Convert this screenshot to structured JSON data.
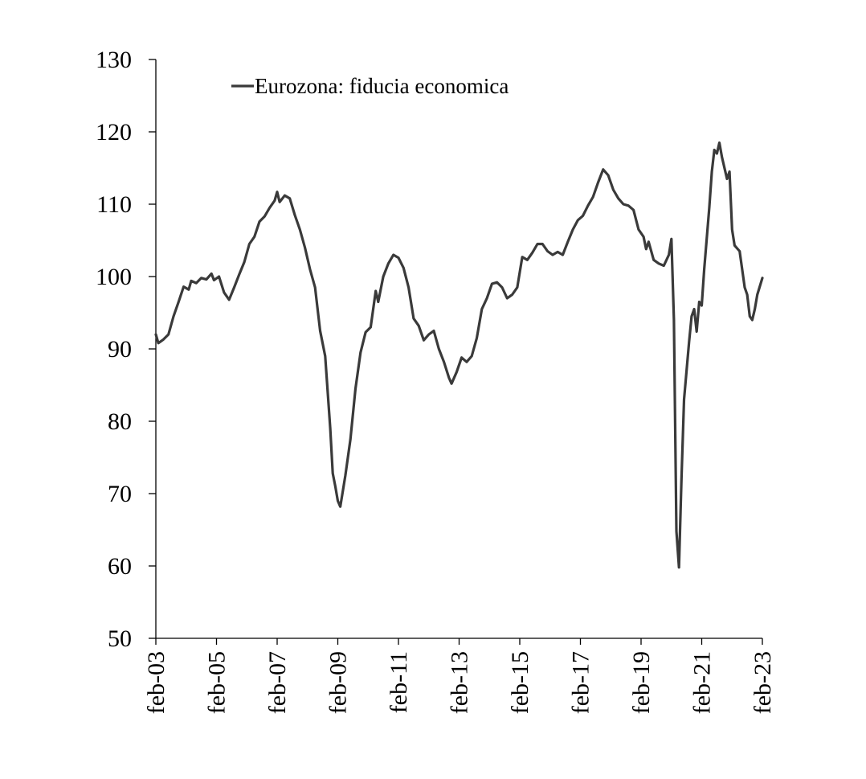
{
  "chart_data": {
    "type": "line",
    "title": "",
    "xlabel": "",
    "ylabel": "",
    "ylim": [
      50,
      130
    ],
    "yticks": [
      50,
      60,
      70,
      80,
      90,
      100,
      110,
      120,
      130
    ],
    "xlim": [
      "2003-02",
      "2023-02"
    ],
    "xticks": [
      {
        "date": "2003-02",
        "label": "feb-03"
      },
      {
        "date": "2005-02",
        "label": "feb-05"
      },
      {
        "date": "2007-02",
        "label": "feb-07"
      },
      {
        "date": "2009-02",
        "label": "feb-09"
      },
      {
        "date": "2011-02",
        "label": "feb-11"
      },
      {
        "date": "2013-02",
        "label": "feb-13"
      },
      {
        "date": "2015-02",
        "label": "feb-15"
      },
      {
        "date": "2017-02",
        "label": "feb-17"
      },
      {
        "date": "2019-02",
        "label": "feb-19"
      },
      {
        "date": "2021-02",
        "label": "feb-21"
      },
      {
        "date": "2023-02",
        "label": "feb-23"
      }
    ],
    "grid": false,
    "legend": {
      "position": "top-left"
    },
    "series": [
      {
        "name": "Eurozona: fiducia economica",
        "color": "#3a3a3a",
        "points": [
          [
            "2003-02",
            92.0
          ],
          [
            "2003-03",
            90.8
          ],
          [
            "2003-05",
            91.3
          ],
          [
            "2003-07",
            92.0
          ],
          [
            "2003-09",
            94.5
          ],
          [
            "2003-11",
            96.5
          ],
          [
            "2004-01",
            98.6
          ],
          [
            "2004-03",
            98.2
          ],
          [
            "2004-04",
            99.4
          ],
          [
            "2004-06",
            99.1
          ],
          [
            "2004-08",
            99.8
          ],
          [
            "2004-10",
            99.6
          ],
          [
            "2004-12",
            100.4
          ],
          [
            "2005-01",
            99.5
          ],
          [
            "2005-03",
            100.0
          ],
          [
            "2005-05",
            97.8
          ],
          [
            "2005-07",
            96.8
          ],
          [
            "2005-09",
            98.5
          ],
          [
            "2005-11",
            100.3
          ],
          [
            "2006-01",
            102.0
          ],
          [
            "2006-03",
            104.5
          ],
          [
            "2006-05",
            105.5
          ],
          [
            "2006-07",
            107.6
          ],
          [
            "2006-09",
            108.3
          ],
          [
            "2006-11",
            109.5
          ],
          [
            "2007-01",
            110.5
          ],
          [
            "2007-02",
            111.7
          ],
          [
            "2007-03",
            110.3
          ],
          [
            "2007-05",
            111.2
          ],
          [
            "2007-07",
            110.8
          ],
          [
            "2007-09",
            108.5
          ],
          [
            "2007-11",
            106.5
          ],
          [
            "2008-01",
            104.0
          ],
          [
            "2008-03",
            101.0
          ],
          [
            "2008-05",
            98.5
          ],
          [
            "2008-07",
            92.5
          ],
          [
            "2008-09",
            89.0
          ],
          [
            "2008-11",
            79.0
          ],
          [
            "2008-12",
            72.8
          ],
          [
            "2009-01",
            71.0
          ],
          [
            "2009-02",
            69.0
          ],
          [
            "2009-03",
            68.2
          ],
          [
            "2009-05",
            72.5
          ],
          [
            "2009-07",
            77.5
          ],
          [
            "2009-09",
            84.5
          ],
          [
            "2009-11",
            89.5
          ],
          [
            "2010-01",
            92.3
          ],
          [
            "2010-03",
            93.0
          ],
          [
            "2010-05",
            98.0
          ],
          [
            "2010-06",
            96.5
          ],
          [
            "2010-08",
            100.0
          ],
          [
            "2010-10",
            101.8
          ],
          [
            "2010-12",
            103.0
          ],
          [
            "2011-02",
            102.6
          ],
          [
            "2011-04",
            101.2
          ],
          [
            "2011-06",
            98.5
          ],
          [
            "2011-08",
            94.2
          ],
          [
            "2011-10",
            93.2
          ],
          [
            "2011-12",
            91.2
          ],
          [
            "2012-02",
            92.0
          ],
          [
            "2012-04",
            92.5
          ],
          [
            "2012-06",
            90.0
          ],
          [
            "2012-08",
            88.2
          ],
          [
            "2012-10",
            86.0
          ],
          [
            "2012-11",
            85.2
          ],
          [
            "2013-01",
            86.8
          ],
          [
            "2013-03",
            88.8
          ],
          [
            "2013-05",
            88.2
          ],
          [
            "2013-07",
            89.0
          ],
          [
            "2013-09",
            91.5
          ],
          [
            "2013-11",
            95.5
          ],
          [
            "2014-01",
            97.0
          ],
          [
            "2014-03",
            99.0
          ],
          [
            "2014-05",
            99.2
          ],
          [
            "2014-07",
            98.5
          ],
          [
            "2014-09",
            97.0
          ],
          [
            "2014-11",
            97.5
          ],
          [
            "2015-01",
            98.5
          ],
          [
            "2015-03",
            102.7
          ],
          [
            "2015-05",
            102.3
          ],
          [
            "2015-07",
            103.3
          ],
          [
            "2015-09",
            104.5
          ],
          [
            "2015-11",
            104.5
          ],
          [
            "2016-01",
            103.5
          ],
          [
            "2016-03",
            103.0
          ],
          [
            "2016-05",
            103.4
          ],
          [
            "2016-07",
            103.0
          ],
          [
            "2016-09",
            104.8
          ],
          [
            "2016-11",
            106.5
          ],
          [
            "2017-01",
            107.8
          ],
          [
            "2017-03",
            108.4
          ],
          [
            "2017-05",
            109.8
          ],
          [
            "2017-07",
            111.0
          ],
          [
            "2017-09",
            113.0
          ],
          [
            "2017-11",
            114.8
          ],
          [
            "2018-01",
            114.0
          ],
          [
            "2018-03",
            112.0
          ],
          [
            "2018-05",
            110.8
          ],
          [
            "2018-07",
            110.0
          ],
          [
            "2018-09",
            109.8
          ],
          [
            "2018-11",
            109.2
          ],
          [
            "2019-01",
            106.5
          ],
          [
            "2019-03",
            105.5
          ],
          [
            "2019-04",
            103.8
          ],
          [
            "2019-05",
            104.8
          ],
          [
            "2019-07",
            102.3
          ],
          [
            "2019-09",
            101.8
          ],
          [
            "2019-11",
            101.5
          ],
          [
            "2020-01",
            103.0
          ],
          [
            "2020-02",
            105.2
          ],
          [
            "2020-03",
            94.0
          ],
          [
            "2020-04",
            64.8
          ],
          [
            "2020-05",
            59.8
          ],
          [
            "2020-06",
            72.0
          ],
          [
            "2020-07",
            83.0
          ],
          [
            "2020-09",
            91.0
          ],
          [
            "2020-10",
            94.5
          ],
          [
            "2020-11",
            95.5
          ],
          [
            "2020-12",
            92.4
          ],
          [
            "2021-01",
            96.5
          ],
          [
            "2021-02",
            96.0
          ],
          [
            "2021-03",
            101.0
          ],
          [
            "2021-05",
            109.5
          ],
          [
            "2021-06",
            114.5
          ],
          [
            "2021-07",
            117.5
          ],
          [
            "2021-08",
            117.0
          ],
          [
            "2021-09",
            118.5
          ],
          [
            "2021-10",
            116.5
          ],
          [
            "2021-12",
            113.5
          ],
          [
            "2022-01",
            114.5
          ],
          [
            "2022-02",
            106.5
          ],
          [
            "2022-03",
            104.3
          ],
          [
            "2022-05",
            103.5
          ],
          [
            "2022-07",
            98.5
          ],
          [
            "2022-08",
            97.5
          ],
          [
            "2022-09",
            94.5
          ],
          [
            "2022-10",
            94.0
          ],
          [
            "2022-11",
            95.5
          ],
          [
            "2022-12",
            97.5
          ],
          [
            "2023-02",
            99.8
          ]
        ]
      }
    ]
  }
}
